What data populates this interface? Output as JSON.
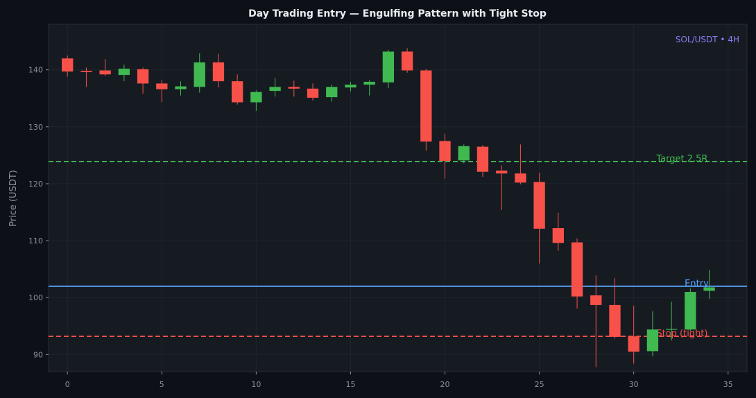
{
  "chart_data": {
    "type": "candlestick",
    "title": "Day Trading Entry — Engulfing Pattern with Tight Stop",
    "xlabel": "",
    "ylabel": "Price (USDT)",
    "badge": "SOL/USDT • 4H",
    "xlim": [
      -1,
      36
    ],
    "ylim": [
      87,
      148
    ],
    "xticks": [
      0,
      5,
      10,
      15,
      20,
      25,
      30,
      35
    ],
    "yticks": [
      90,
      100,
      110,
      120,
      130,
      140
    ],
    "grid": true,
    "levels": [
      {
        "label": "Target 2.5R",
        "value": 123.9,
        "color": "#3fb950",
        "style": "dashed"
      },
      {
        "label": "Entry",
        "value": 102.0,
        "color": "#58a6ff",
        "style": "solid"
      },
      {
        "label": "Stop (tight)",
        "value": 93.2,
        "color": "#f85149",
        "style": "dashed"
      }
    ],
    "candles": [
      {
        "x": 0,
        "open": 142.0,
        "high": 142.5,
        "low": 138.8,
        "close": 139.7
      },
      {
        "x": 1,
        "open": 139.8,
        "high": 140.4,
        "low": 137.0,
        "close": 139.6
      },
      {
        "x": 2,
        "open": 139.9,
        "high": 141.9,
        "low": 138.9,
        "close": 139.2
      },
      {
        "x": 3,
        "open": 139.1,
        "high": 140.9,
        "low": 138.0,
        "close": 140.2
      },
      {
        "x": 4,
        "open": 140.1,
        "high": 140.4,
        "low": 135.8,
        "close": 137.6
      },
      {
        "x": 5,
        "open": 137.6,
        "high": 138.2,
        "low": 134.3,
        "close": 136.6
      },
      {
        "x": 6,
        "open": 136.6,
        "high": 138.0,
        "low": 135.5,
        "close": 137.1
      },
      {
        "x": 7,
        "open": 137.0,
        "high": 142.9,
        "low": 136.0,
        "close": 141.3
      },
      {
        "x": 8,
        "open": 141.3,
        "high": 142.8,
        "low": 136.9,
        "close": 138.0
      },
      {
        "x": 9,
        "open": 138.0,
        "high": 139.2,
        "low": 133.9,
        "close": 134.3
      },
      {
        "x": 10,
        "open": 134.3,
        "high": 136.4,
        "low": 132.8,
        "close": 136.1
      },
      {
        "x": 11,
        "open": 136.3,
        "high": 138.6,
        "low": 135.3,
        "close": 137.0
      },
      {
        "x": 12,
        "open": 137.0,
        "high": 138.1,
        "low": 135.3,
        "close": 136.7
      },
      {
        "x": 13,
        "open": 136.7,
        "high": 137.6,
        "low": 134.6,
        "close": 135.1
      },
      {
        "x": 14,
        "open": 135.2,
        "high": 137.4,
        "low": 134.4,
        "close": 137.0
      },
      {
        "x": 15,
        "open": 136.9,
        "high": 137.9,
        "low": 136.2,
        "close": 137.4
      },
      {
        "x": 16,
        "open": 137.4,
        "high": 138.2,
        "low": 135.5,
        "close": 137.9
      },
      {
        "x": 17,
        "open": 137.8,
        "high": 143.5,
        "low": 136.8,
        "close": 143.2
      },
      {
        "x": 18,
        "open": 143.2,
        "high": 143.8,
        "low": 139.5,
        "close": 139.9
      },
      {
        "x": 19,
        "open": 139.9,
        "high": 140.2,
        "low": 125.8,
        "close": 127.4
      },
      {
        "x": 20,
        "open": 127.5,
        "high": 128.8,
        "low": 120.9,
        "close": 124.0
      },
      {
        "x": 21,
        "open": 124.1,
        "high": 126.9,
        "low": 123.6,
        "close": 126.6
      },
      {
        "x": 22,
        "open": 126.5,
        "high": 126.8,
        "low": 121.2,
        "close": 122.1
      },
      {
        "x": 23,
        "open": 122.3,
        "high": 123.2,
        "low": 115.4,
        "close": 121.8
      },
      {
        "x": 24,
        "open": 121.8,
        "high": 126.9,
        "low": 119.9,
        "close": 120.2
      },
      {
        "x": 25,
        "open": 120.3,
        "high": 121.9,
        "low": 106.0,
        "close": 112.1
      },
      {
        "x": 26,
        "open": 112.2,
        "high": 114.9,
        "low": 108.2,
        "close": 109.6
      },
      {
        "x": 27,
        "open": 109.7,
        "high": 110.4,
        "low": 98.1,
        "close": 100.2
      },
      {
        "x": 28,
        "open": 100.4,
        "high": 103.9,
        "low": 87.8,
        "close": 98.7
      },
      {
        "x": 29,
        "open": 98.7,
        "high": 103.4,
        "low": 92.8,
        "close": 93.1
      },
      {
        "x": 30,
        "open": 93.2,
        "high": 98.6,
        "low": 88.4,
        "close": 90.5
      },
      {
        "x": 31,
        "open": 90.6,
        "high": 97.6,
        "low": 89.7,
        "close": 94.4
      },
      {
        "x": 32,
        "open": 94.4,
        "high": 99.3,
        "low": 92.5,
        "close": 94.5
      },
      {
        "x": 33,
        "open": 94.4,
        "high": 101.6,
        "low": 94.1,
        "close": 101.0
      },
      {
        "x": 34,
        "open": 101.2,
        "high": 104.9,
        "low": 99.8,
        "close": 101.8
      }
    ],
    "colors": {
      "up": "#3fb950",
      "down": "#f85149",
      "background": "#0d1117",
      "plot_background": "#161b22",
      "grid": "#1f252d",
      "badge": "#8b7cf6"
    }
  }
}
